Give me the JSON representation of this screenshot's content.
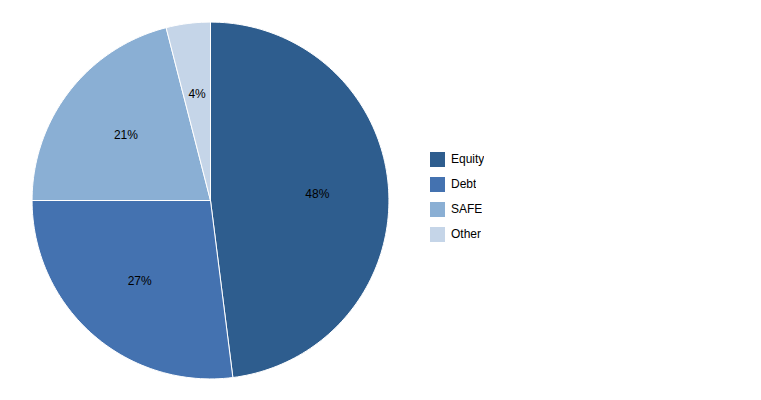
{
  "chart_data": {
    "type": "pie",
    "categories": [
      "Equity",
      "Debt",
      "SAFE",
      "Other"
    ],
    "values": [
      48,
      27,
      21,
      4
    ],
    "value_labels": [
      "48%",
      "27%",
      "21%",
      "4%"
    ],
    "colors": [
      "#2E5D8E",
      "#4472B0",
      "#8AAFD4",
      "#C5D5E8"
    ],
    "data_labels": true,
    "legend": "right"
  }
}
